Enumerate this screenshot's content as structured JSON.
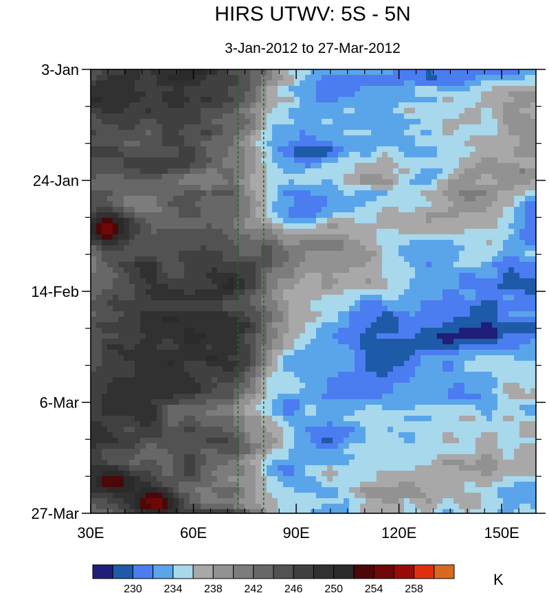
{
  "chart_data": {
    "type": "heatmap",
    "title": "HIRS UTWV: 5S - 5N",
    "subtitle": "3-Jan-2012 to 27-Mar-2012",
    "x_axis": {
      "range": [
        30,
        160
      ],
      "ticks": [
        30,
        60,
        90,
        120,
        150
      ],
      "tick_labels": [
        "30E",
        "60E",
        "90E",
        "120E",
        "150E"
      ]
    },
    "y_axis": {
      "range": [
        "2012-01-03",
        "2012-03-27"
      ],
      "ticks": [
        "2012-01-03",
        "2012-01-24",
        "2012-02-14",
        "2012-03-06",
        "2012-03-27"
      ],
      "tick_labels": [
        "3-Jan",
        "24-Jan",
        "14-Feb",
        "6-Mar",
        "27-Mar"
      ],
      "inverted": true
    },
    "reference_lines": [
      {
        "orientation": "vertical",
        "x": 73,
        "style": "dashed",
        "color": "#0d7a12"
      },
      {
        "orientation": "vertical",
        "x": 80.5,
        "style": "dashed",
        "color": "#0d7a12"
      }
    ],
    "colorbar": {
      "unit": "K",
      "levels": [
        228,
        230,
        232,
        234,
        236,
        238,
        240,
        242,
        244,
        246,
        248,
        250,
        252,
        254,
        256,
        258,
        260
      ],
      "labeled_levels": [
        "230",
        "234",
        "238",
        "242",
        "246",
        "250",
        "254",
        "258"
      ],
      "colors": [
        "#1f1f7a",
        "#1d5aa8",
        "#4b7cf0",
        "#5aa5ea",
        "#a8d8ec",
        "#a8a8a8",
        "#929292",
        "#7c7c7c",
        "#676767",
        "#525252",
        "#404040",
        "#313131",
        "#2a2a2a",
        "#4a0808",
        "#6e0808",
        "#9a0a0a",
        "#e03010",
        "#d86a20"
      ]
    },
    "field_description": "Hovmoller of upper-troposphere water vapour brightness temperature (K); moist (blue, 228-238 K) east of ~80E and dry (grey/red, 240-258 K) west of ~70E",
    "blobs": [
      {
        "lon": 40,
        "days": 5,
        "rx": 12,
        "ry": 2.5,
        "value": 249
      },
      {
        "lon": 50,
        "days": 18,
        "rx": 13,
        "ry": 2.5,
        "value": 248
      },
      {
        "lon": 35,
        "days": 30,
        "rx": 6,
        "ry": 3,
        "value": 255
      },
      {
        "lon": 45,
        "days": 60,
        "rx": 14,
        "ry": 3,
        "value": 249
      },
      {
        "lon": 37,
        "days": 78,
        "rx": 7,
        "ry": 2.5,
        "value": 254
      },
      {
        "lon": 49,
        "days": 82,
        "rx": 8,
        "ry": 3,
        "value": 255
      },
      {
        "lon": 68,
        "days": 85,
        "rx": 10,
        "ry": 1.5,
        "value": 254
      },
      {
        "lon": 100,
        "days": 10,
        "rx": 9,
        "ry": 3,
        "value": 234
      },
      {
        "lon": 128,
        "days": 15,
        "rx": 9,
        "ry": 2.5,
        "value": 234
      },
      {
        "lon": 92,
        "days": 27,
        "rx": 9,
        "ry": 3,
        "value": 231
      },
      {
        "lon": 130,
        "days": 34,
        "rx": 12,
        "ry": 3,
        "value": 232
      },
      {
        "lon": 135,
        "days": 40,
        "rx": 9,
        "ry": 2.5,
        "value": 232
      },
      {
        "lon": 100,
        "days": 55,
        "rx": 12,
        "ry": 3,
        "value": 233
      },
      {
        "lon": 128,
        "days": 60,
        "rx": 13,
        "ry": 3.5,
        "value": 233
      },
      {
        "lon": 116,
        "days": 73,
        "rx": 12,
        "ry": 3,
        "value": 234
      },
      {
        "lon": 147,
        "days": 86,
        "rx": 8,
        "ry": 2,
        "value": 232
      }
    ]
  }
}
